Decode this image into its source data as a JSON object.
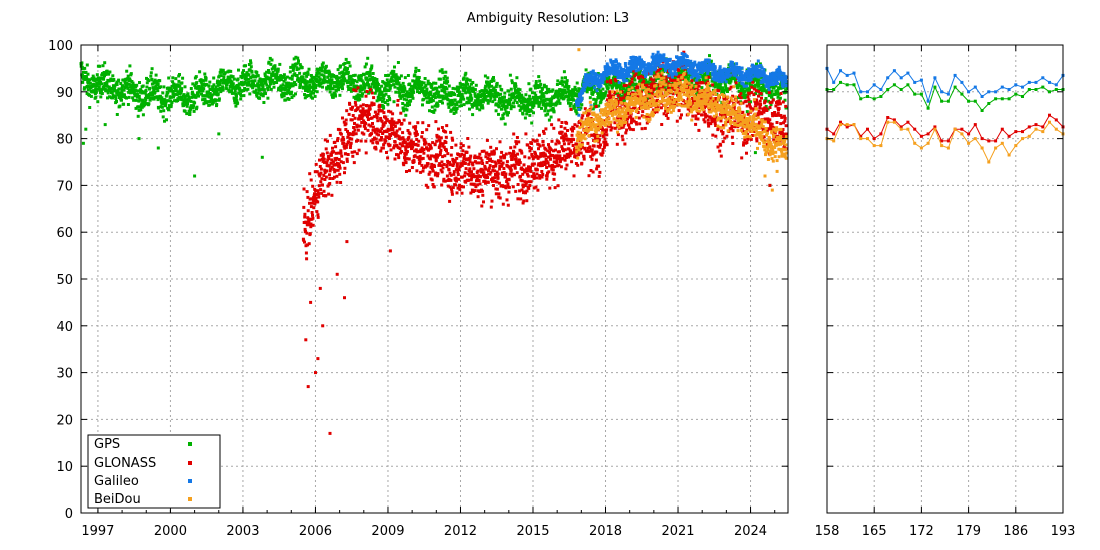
{
  "chart_data": {
    "type": "scatter",
    "title": "Ambiguity Resolution: L3",
    "grid": true,
    "legend_position": "bottom-left",
    "series_colors": {
      "GPS": "#00b000",
      "GLONASS": "#e00000",
      "Galileo": "#1478e6",
      "BeiDou": "#f5a01e"
    },
    "panels": [
      {
        "id": "history",
        "x_type": "date",
        "xlim": [
          1996.3,
          2025.55
        ],
        "x_ticks": [
          "1997",
          "2000",
          "2003",
          "2006",
          "2009",
          "2012",
          "2015",
          "2018",
          "2021",
          "2024"
        ],
        "ylim": [
          0,
          100
        ],
        "y_ticks": [
          "0",
          "10",
          "20",
          "30",
          "40",
          "50",
          "60",
          "70",
          "80",
          "90",
          "100"
        ],
        "trends": [
          {
            "name": "GPS",
            "start": 1996.3,
            "end": 2025.5,
            "knots": [
              [
                1996.3,
                93
              ],
              [
                1997,
                91.5
              ],
              [
                1999,
                89.5
              ],
              [
                2001,
                89
              ],
              [
                2003,
                92
              ],
              [
                2005,
                92.5
              ],
              [
                2007,
                92.5
              ],
              [
                2009,
                91
              ],
              [
                2011,
                90
              ],
              [
                2013,
                89
              ],
              [
                2014.5,
                88
              ],
              [
                2016,
                89
              ],
              [
                2017,
                90
              ],
              [
                2019,
                92
              ],
              [
                2021,
                93
              ],
              [
                2023,
                92.5
              ],
              [
                2025,
                91
              ],
              [
                2025.5,
                90
              ]
            ],
            "outliers": [
              [
                1996.4,
                79
              ],
              [
                1996.5,
                82
              ],
              [
                1997.3,
                83
              ],
              [
                1998.7,
                80
              ],
              [
                1999.5,
                78
              ],
              [
                2001.0,
                72
              ],
              [
                2002.0,
                81
              ],
              [
                2003.8,
                76
              ],
              [
                2024.2,
                77
              ],
              [
                2024.8,
                70
              ]
            ]
          },
          {
            "name": "GLONASS",
            "start": 2005.5,
            "end": 2025.5,
            "knots": [
              [
                2005.5,
                60
              ],
              [
                2006,
                68
              ],
              [
                2006.5,
                74
              ],
              [
                2007,
                77
              ],
              [
                2007.5,
                82
              ],
              [
                2008,
                85
              ],
              [
                2009,
                82
              ],
              [
                2010,
                78
              ],
              [
                2011,
                76
              ],
              [
                2012,
                74
              ],
              [
                2013,
                73
              ],
              [
                2014,
                73
              ],
              [
                2015,
                75
              ],
              [
                2016,
                77
              ],
              [
                2017,
                79
              ],
              [
                2018,
                80
              ],
              [
                2018.1,
                86
              ],
              [
                2019,
                87
              ],
              [
                2020,
                90
              ],
              [
                2021,
                91
              ],
              [
                2022,
                88
              ],
              [
                2023,
                85
              ],
              [
                2024,
                85
              ],
              [
                2025,
                84
              ],
              [
                2025.5,
                82
              ]
            ],
            "outliers": [
              [
                2005.6,
                37
              ],
              [
                2005.7,
                27
              ],
              [
                2005.8,
                45
              ],
              [
                2006.0,
                30
              ],
              [
                2006.1,
                33
              ],
              [
                2006.2,
                48
              ],
              [
                2006.3,
                40
              ],
              [
                2006.6,
                17
              ],
              [
                2006.9,
                51
              ],
              [
                2007.2,
                46
              ],
              [
                2007.3,
                58
              ],
              [
                2009.1,
                56
              ],
              [
                2024.8,
                70
              ]
            ]
          },
          {
            "name": "Galileo",
            "start": 2016.8,
            "end": 2025.5,
            "knots": [
              [
                2016.8,
                88
              ],
              [
                2017.3,
                92
              ],
              [
                2018,
                94
              ],
              [
                2019,
                95
              ],
              [
                2020,
                96
              ],
              [
                2021,
                96
              ],
              [
                2022,
                95
              ],
              [
                2023,
                94
              ],
              [
                2024,
                94
              ],
              [
                2025,
                93
              ],
              [
                2025.5,
                92
              ]
            ],
            "outliers": [
              [
                2016.9,
                85
              ],
              [
                2017.4,
                87
              ],
              [
                2017.8,
                86
              ]
            ]
          },
          {
            "name": "BeiDou",
            "start": 2016.8,
            "end": 2025.5,
            "knots": [
              [
                2016.8,
                80
              ],
              [
                2017.5,
                84
              ],
              [
                2018,
                85
              ],
              [
                2019,
                87
              ],
              [
                2020,
                89
              ],
              [
                2021,
                90
              ],
              [
                2022,
                88
              ],
              [
                2023,
                86
              ],
              [
                2024,
                83
              ],
              [
                2025,
                79
              ],
              [
                2025.5,
                77
              ]
            ],
            "outliers": [
              [
                2016.9,
                99
              ],
              [
                2024.6,
                72
              ],
              [
                2024.9,
                69
              ],
              [
                2025.1,
                73
              ]
            ]
          }
        ]
      },
      {
        "id": "recent",
        "x_type": "day",
        "xlim": [
          158,
          193
        ],
        "x_ticks": [
          "158",
          "165",
          "172",
          "179",
          "186",
          "193"
        ],
        "ylim": [
          0,
          100
        ],
        "series": [
          {
            "name": "Galileo",
            "x": [
              158,
              159,
              160,
              161,
              162,
              163,
              164,
              165,
              166,
              167,
              168,
              169,
              170,
              171,
              172,
              173,
              174,
              175,
              176,
              177,
              178,
              179,
              180,
              181,
              182,
              183,
              184,
              185,
              186,
              187,
              188,
              189,
              190,
              191,
              192,
              193
            ],
            "values": [
              95,
              92,
              94.5,
              93.5,
              94,
              90,
              90,
              91.5,
              90.5,
              93,
              94.5,
              93,
              94,
              92,
              92.5,
              88,
              93,
              90,
              89.5,
              93.5,
              92,
              90,
              91,
              89,
              90,
              90,
              91,
              90.5,
              91.5,
              91,
              92,
              92,
              93,
              92,
              91.5,
              93.5
            ]
          },
          {
            "name": "GPS",
            "x": [
              158,
              159,
              160,
              161,
              162,
              163,
              164,
              165,
              166,
              167,
              168,
              169,
              170,
              171,
              172,
              173,
              174,
              175,
              176,
              177,
              178,
              179,
              180,
              181,
              182,
              183,
              184,
              185,
              186,
              187,
              188,
              189,
              190,
              191,
              192,
              193
            ],
            "values": [
              90.5,
              90.5,
              92,
              91.5,
              91.5,
              88.5,
              89,
              88.5,
              89,
              90.5,
              91.5,
              90.5,
              91.5,
              89.5,
              89.5,
              86.5,
              91,
              88,
              88,
              91,
              89.5,
              88,
              88,
              86,
              87.5,
              88.5,
              88.5,
              88.5,
              89.5,
              89,
              90.5,
              90.5,
              91,
              90,
              90.5,
              90.5
            ]
          },
          {
            "name": "GLONASS",
            "x": [
              158,
              159,
              160,
              161,
              162,
              163,
              164,
              165,
              166,
              167,
              168,
              169,
              170,
              171,
              172,
              173,
              174,
              175,
              176,
              177,
              178,
              179,
              180,
              181,
              182,
              183,
              184,
              185,
              186,
              187,
              188,
              189,
              190,
              191,
              192,
              193
            ],
            "values": [
              82,
              81,
              83.5,
              82.5,
              83,
              80.5,
              82,
              80,
              81,
              84.5,
              84,
              82.5,
              83.5,
              82,
              80.5,
              81,
              82.5,
              79.5,
              79.5,
              82,
              82,
              81,
              83,
              80,
              79.5,
              79.5,
              82,
              80.5,
              81.5,
              81.5,
              82.5,
              83,
              82.5,
              85,
              84,
              82.5
            ]
          },
          {
            "name": "BeiDou",
            "x": [
              158,
              159,
              160,
              161,
              162,
              163,
              164,
              165,
              166,
              167,
              168,
              169,
              170,
              171,
              172,
              173,
              174,
              175,
              176,
              177,
              178,
              179,
              180,
              181,
              182,
              183,
              184,
              185,
              186,
              187,
              188,
              189,
              190,
              191,
              192,
              193
            ],
            "values": [
              80,
              79.5,
              83,
              83,
              83,
              80,
              80,
              78.5,
              78.5,
              83.5,
              83.5,
              82,
              82,
              79,
              78,
              79,
              82,
              78.5,
              78,
              82,
              81,
              79,
              80,
              78,
              75,
              78,
              79,
              76.5,
              78.5,
              80,
              80.5,
              82,
              81.5,
              83.5,
              82,
              81
            ]
          }
        ]
      }
    ]
  }
}
